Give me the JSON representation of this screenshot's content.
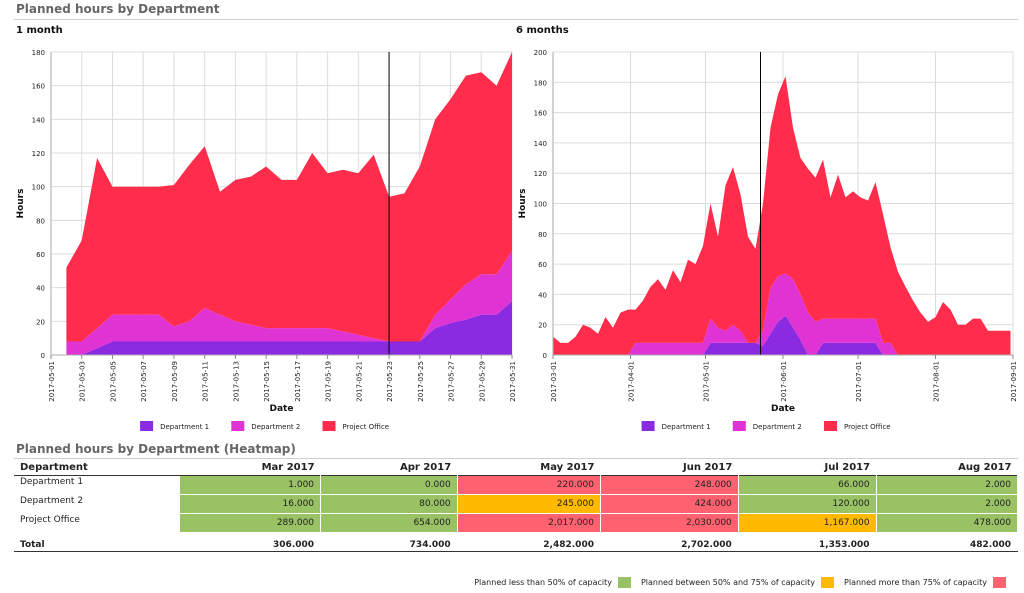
{
  "page": {
    "title": "Planned hours by Department",
    "heatmap_title": "Planned hours by Department (Heatmap)"
  },
  "colors": {
    "department_1": "#8a2be2",
    "department_2": "#e033d3",
    "project_office": "#ff2d4b",
    "heat_green": "#99c264",
    "heat_yellow": "#ffba00",
    "heat_red": "#fe6270"
  },
  "chart_data": [
    {
      "type": "area",
      "stacked": true,
      "title": "1 month",
      "xlabel": "Date",
      "ylabel": "Hours",
      "ylim": [
        0,
        180
      ],
      "yticks": [
        0,
        20,
        40,
        60,
        80,
        100,
        120,
        140,
        160,
        180
      ],
      "xticks": [
        "2017-05-01",
        "2017-05-03",
        "2017-05-05",
        "2017-05-07",
        "2017-05-09",
        "2017-05-11",
        "2017-05-13",
        "2017-05-15",
        "2017-05-17",
        "2017-05-19",
        "2017-05-21",
        "2017-05-23",
        "2017-05-25",
        "2017-05-27",
        "2017-05-29",
        "2017-05-31"
      ],
      "marker_date": "2017-05-23",
      "legend_position": "bottom",
      "x": [
        "2017-05-02",
        "2017-05-03",
        "2017-05-04",
        "2017-05-05",
        "2017-05-06",
        "2017-05-07",
        "2017-05-08",
        "2017-05-09",
        "2017-05-10",
        "2017-05-11",
        "2017-05-12",
        "2017-05-13",
        "2017-05-14",
        "2017-05-15",
        "2017-05-16",
        "2017-05-17",
        "2017-05-18",
        "2017-05-19",
        "2017-05-20",
        "2017-05-21",
        "2017-05-22",
        "2017-05-23",
        "2017-05-24",
        "2017-05-25",
        "2017-05-26",
        "2017-05-27",
        "2017-05-28",
        "2017-05-29",
        "2017-05-30",
        "2017-05-31"
      ],
      "series": [
        {
          "name": "Department 1",
          "values": [
            0,
            0,
            4,
            8,
            8,
            8,
            8,
            8,
            8,
            8,
            8,
            8,
            8,
            8,
            8,
            8,
            8,
            8,
            8,
            8,
            8,
            8,
            8,
            8,
            16,
            19,
            21,
            24,
            24,
            32
          ]
        },
        {
          "name": "Department 2",
          "values": [
            8,
            8,
            12,
            16,
            16,
            16,
            16,
            9,
            12,
            20,
            16,
            12,
            10,
            8,
            8,
            8,
            8,
            8,
            6,
            4,
            2,
            0,
            0,
            0,
            8,
            14,
            21,
            24,
            24,
            30
          ]
        },
        {
          "name": "Project Office",
          "values": [
            44,
            60,
            101,
            76,
            76,
            76,
            76,
            84,
            93,
            96,
            73,
            84,
            88,
            96,
            88,
            88,
            104,
            92,
            96,
            96,
            109,
            86,
            88,
            104,
            116,
            119,
            124,
            120,
            112,
            118
          ]
        }
      ]
    },
    {
      "type": "area",
      "stacked": true,
      "title": "6 months",
      "xlabel": "Date",
      "ylabel": "Hours",
      "ylim": [
        0,
        200
      ],
      "yticks": [
        0,
        20,
        40,
        60,
        80,
        100,
        120,
        140,
        160,
        180,
        200
      ],
      "xticks": [
        "2017-03-01",
        "2017-04-01",
        "2017-05-01",
        "2017-06-01",
        "2017-07-01",
        "2017-08-01",
        "2017-09-01"
      ],
      "marker_date": "2017-05-23",
      "legend_position": "bottom",
      "x": [
        "2017-03-01",
        "2017-03-04",
        "2017-03-07",
        "2017-03-10",
        "2017-03-13",
        "2017-03-16",
        "2017-03-19",
        "2017-03-22",
        "2017-03-25",
        "2017-03-28",
        "2017-03-31",
        "2017-04-03",
        "2017-04-06",
        "2017-04-09",
        "2017-04-12",
        "2017-04-15",
        "2017-04-18",
        "2017-04-21",
        "2017-04-24",
        "2017-04-27",
        "2017-04-30",
        "2017-05-03",
        "2017-05-06",
        "2017-05-09",
        "2017-05-12",
        "2017-05-15",
        "2017-05-18",
        "2017-05-21",
        "2017-05-24",
        "2017-05-27",
        "2017-05-30",
        "2017-06-02",
        "2017-06-05",
        "2017-06-08",
        "2017-06-11",
        "2017-06-14",
        "2017-06-17",
        "2017-06-20",
        "2017-06-23",
        "2017-06-26",
        "2017-06-29",
        "2017-07-02",
        "2017-07-05",
        "2017-07-08",
        "2017-07-11",
        "2017-07-14",
        "2017-07-17",
        "2017-07-20",
        "2017-07-23",
        "2017-07-26",
        "2017-07-29",
        "2017-08-01",
        "2017-08-04",
        "2017-08-07",
        "2017-08-10",
        "2017-08-13",
        "2017-08-16",
        "2017-08-19",
        "2017-08-22",
        "2017-08-25",
        "2017-08-28",
        "2017-08-31"
      ],
      "series": [
        {
          "name": "Department 1",
          "values": [
            0,
            0,
            0,
            0,
            0,
            0,
            0,
            0,
            0,
            0,
            0,
            0,
            0,
            0,
            0,
            0,
            0,
            0,
            0,
            0,
            0,
            8,
            8,
            8,
            8,
            8,
            8,
            8,
            6,
            14,
            22,
            26,
            18,
            10,
            0,
            0,
            8,
            8,
            8,
            8,
            8,
            8,
            8,
            8,
            0,
            0,
            0,
            0,
            0,
            0,
            0,
            0,
            0,
            0,
            0,
            0,
            0,
            0,
            0,
            0,
            0,
            0
          ]
        },
        {
          "name": "Department 2",
          "values": [
            0,
            0,
            0,
            0,
            0,
            0,
            0,
            0,
            0,
            0,
            0,
            8,
            8,
            8,
            8,
            8,
            8,
            8,
            8,
            8,
            8,
            16,
            10,
            8,
            12,
            8,
            0,
            0,
            10,
            30,
            30,
            28,
            32,
            30,
            28,
            22,
            16,
            16,
            16,
            16,
            16,
            16,
            16,
            16,
            8,
            8,
            0,
            0,
            0,
            0,
            0,
            0,
            0,
            0,
            0,
            0,
            0,
            0,
            0,
            0,
            0,
            0
          ]
        },
        {
          "name": "Project Office",
          "values": [
            12,
            8,
            8,
            12,
            20,
            18,
            14,
            25,
            18,
            28,
            30,
            22,
            28,
            37,
            42,
            35,
            48,
            40,
            55,
            52,
            64,
            76,
            60,
            96,
            104,
            90,
            70,
            62,
            84,
            106,
            120,
            130,
            100,
            90,
            95,
            95,
            105,
            80,
            95,
            80,
            84,
            80,
            78,
            90,
            85,
            63,
            55,
            45,
            36,
            28,
            22,
            25,
            35,
            30,
            20,
            20,
            24,
            24,
            16,
            16,
            16,
            16
          ]
        }
      ]
    },
    {
      "type": "table",
      "title": "Planned hours by Department (Heatmap)",
      "columns": [
        "Department",
        "Mar 2017",
        "Apr 2017",
        "May 2017",
        "Jun 2017",
        "Jul 2017",
        "Aug 2017"
      ],
      "rows": [
        {
          "label": "Department 1",
          "values": [
            "1.000",
            "0.000",
            "220.000",
            "248.000",
            "66.000",
            "2.000"
          ],
          "levels": [
            "green",
            "green",
            "red",
            "red",
            "green",
            "green"
          ]
        },
        {
          "label": "Department 2",
          "values": [
            "16.000",
            "80.000",
            "245.000",
            "424.000",
            "120.000",
            "2.000"
          ],
          "levels": [
            "green",
            "green",
            "yellow",
            "red",
            "green",
            "green"
          ]
        },
        {
          "label": "Project Office",
          "values": [
            "289.000",
            "654.000",
            "2,017.000",
            "2,030.000",
            "1,167.000",
            "478.000"
          ],
          "levels": [
            "green",
            "green",
            "red",
            "red",
            "yellow",
            "green"
          ]
        }
      ],
      "total": {
        "label": "Total",
        "values": [
          "306.000",
          "734.000",
          "2,482.000",
          "2,702.000",
          "1,353.000",
          "482.000"
        ]
      },
      "legend": [
        {
          "label": "Planned less than 50% of capacity",
          "color": "#99c264"
        },
        {
          "label": "Planned between 50% and 75% of capacity",
          "color": "#ffba00"
        },
        {
          "label": "Planned more than 75% of capacity",
          "color": "#fe6270"
        }
      ]
    }
  ]
}
